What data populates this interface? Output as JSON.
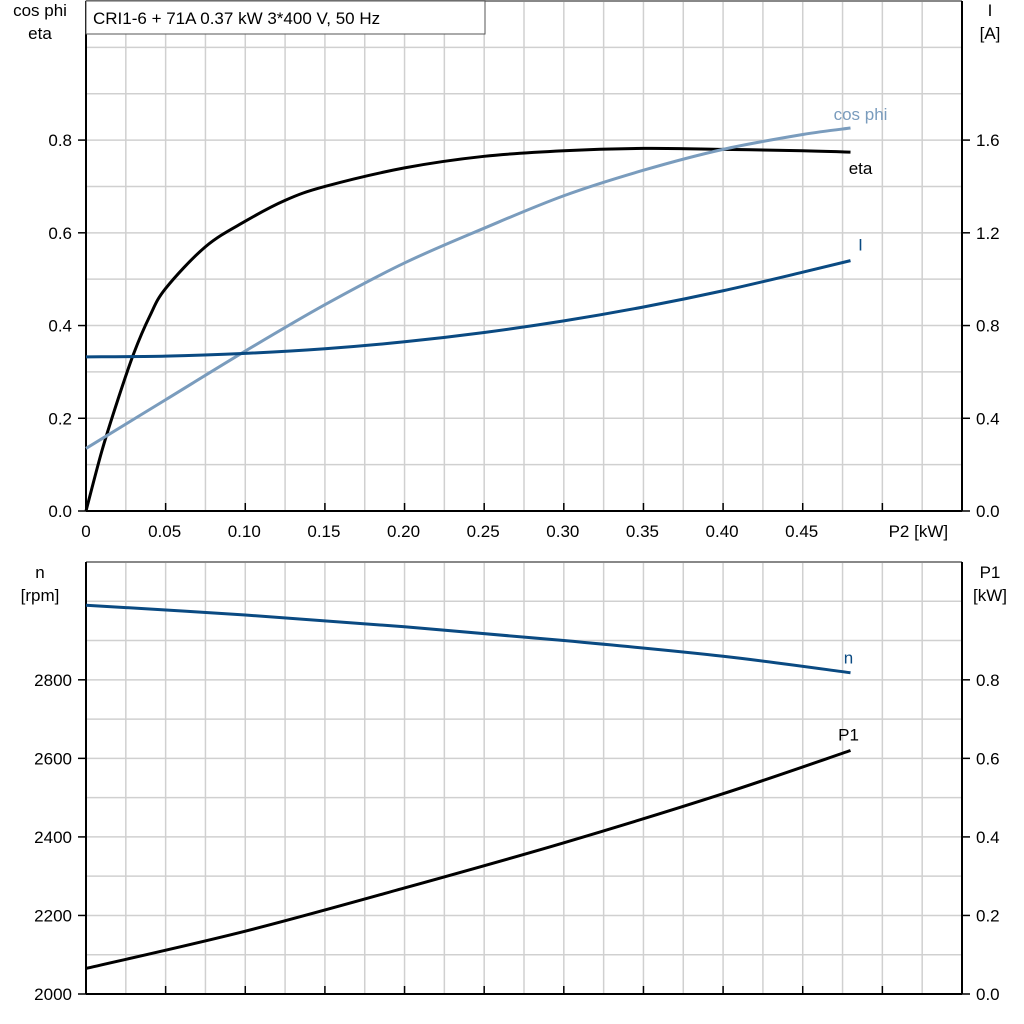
{
  "title": "CRI1-6 + 71A   0.37 kW   3*400 V, 50 Hz",
  "chart_data": [
    {
      "type": "line",
      "xlabel": "P2 [kW]",
      "xlim": [
        0,
        0.55
      ],
      "xticks": [
        "0",
        "0.05",
        "0.10",
        "0.15",
        "0.20",
        "0.25",
        "0.30",
        "0.35",
        "0.40",
        "0.45"
      ],
      "ylabel_left": [
        "cos phi",
        "eta"
      ],
      "ylim_left": [
        0,
        1.1
      ],
      "yticks_left": [
        "0.0",
        "0.2",
        "0.4",
        "0.6",
        "0.8"
      ],
      "ylabel_right": [
        "I",
        "[A]"
      ],
      "ylim_right": [
        0,
        2.2
      ],
      "yticks_right": [
        "0.0",
        "0.4",
        "0.8",
        "1.2",
        "1.6"
      ],
      "grid": true,
      "series": [
        {
          "name": "eta",
          "axis": "left",
          "color": "#000000",
          "x": [
            0,
            0.01,
            0.02,
            0.03,
            0.04,
            0.05,
            0.075,
            0.1,
            0.125,
            0.15,
            0.2,
            0.25,
            0.3,
            0.35,
            0.4,
            0.45,
            0.48
          ],
          "y": [
            0,
            0.13,
            0.24,
            0.34,
            0.42,
            0.48,
            0.57,
            0.625,
            0.67,
            0.7,
            0.74,
            0.765,
            0.777,
            0.782,
            0.78,
            0.777,
            0.774
          ]
        },
        {
          "name": "cos phi",
          "axis": "left",
          "color": "#7a9cbd",
          "x": [
            0,
            0.05,
            0.1,
            0.15,
            0.2,
            0.25,
            0.3,
            0.35,
            0.4,
            0.45,
            0.48
          ],
          "y": [
            0.135,
            0.24,
            0.345,
            0.445,
            0.535,
            0.61,
            0.68,
            0.735,
            0.78,
            0.812,
            0.826
          ]
        },
        {
          "name": "I",
          "axis": "right",
          "color": "#0a4a82",
          "x": [
            0,
            0.05,
            0.1,
            0.15,
            0.2,
            0.25,
            0.3,
            0.35,
            0.4,
            0.45,
            0.48
          ],
          "y": [
            0.665,
            0.668,
            0.68,
            0.7,
            0.73,
            0.77,
            0.82,
            0.88,
            0.95,
            1.03,
            1.08
          ]
        }
      ]
    },
    {
      "type": "line",
      "xlim": [
        0,
        0.55
      ],
      "ylabel_left": [
        "n",
        "[rpm]"
      ],
      "ylim_left": [
        2000,
        3100
      ],
      "yticks_left": [
        "2000",
        "2200",
        "2400",
        "2600",
        "2800"
      ],
      "ylabel_right": [
        "P1",
        "[kW]"
      ],
      "ylim_right": [
        0,
        1.1
      ],
      "yticks_right": [
        "0.0",
        "0.2",
        "0.4",
        "0.6",
        "0.8"
      ],
      "grid": true,
      "series": [
        {
          "name": "n",
          "axis": "left",
          "color": "#0a4a82",
          "x": [
            0,
            0.1,
            0.2,
            0.3,
            0.4,
            0.48
          ],
          "y": [
            2990,
            2965,
            2935,
            2900,
            2860,
            2818
          ]
        },
        {
          "name": "P1",
          "axis": "right",
          "color": "#000000",
          "x": [
            0,
            0.1,
            0.2,
            0.3,
            0.4,
            0.48
          ],
          "y": [
            0.065,
            0.16,
            0.27,
            0.385,
            0.51,
            0.62
          ]
        }
      ]
    }
  ]
}
